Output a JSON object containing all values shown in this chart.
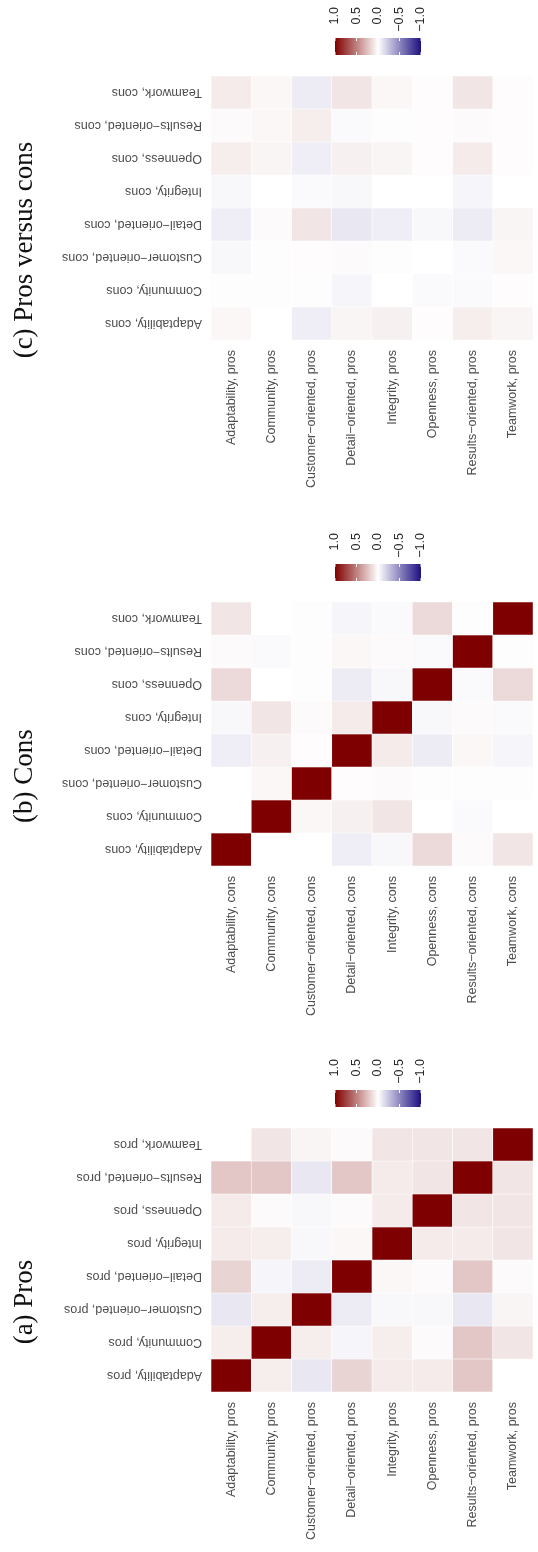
{
  "chart_data": [
    {
      "type": "heatmap",
      "title": "(a) Pros",
      "categories": [
        "Adaptability, pros",
        "Community, pros",
        "Customer−oriented, pros",
        "Detail−oriented, pros",
        "Integrity, pros",
        "Openness, pros",
        "Results−oriented, pros",
        "Teamwork, pros"
      ],
      "y_categories": [
        "Teamwork, pros",
        "Results−oriented, pros",
        "Openness, pros",
        "Integrity, pros",
        "Detail−oriented, pros",
        "Customer−oriented, pros",
        "Community, pros",
        "Adaptability, pros"
      ],
      "cells": [
        [
          0,
          0.1,
          0.04,
          0.02,
          0.1,
          0.1,
          0.1,
          1
        ],
        [
          0.22,
          0.22,
          -0.1,
          0.22,
          0.08,
          0.1,
          1,
          0.1
        ],
        [
          0.08,
          0.02,
          -0.03,
          0.02,
          0.08,
          1,
          0.1,
          0.1
        ],
        [
          0.08,
          0.07,
          -0.03,
          0.03,
          1,
          0.08,
          0.08,
          0.1
        ],
        [
          0.17,
          -0.04,
          -0.08,
          1,
          0.03,
          0.02,
          0.22,
          0.02
        ],
        [
          -0.1,
          0.07,
          1,
          -0.08,
          -0.03,
          -0.03,
          -0.1,
          0.04
        ],
        [
          0.07,
          1,
          0.07,
          -0.04,
          0.07,
          0.02,
          0.22,
          0.1
        ],
        [
          1,
          0.07,
          -0.1,
          0.17,
          0.08,
          0.08,
          0.22,
          0
        ]
      ],
      "clim": [
        1,
        -1
      ],
      "cticks": [
        {
          "value": 1,
          "label": "1.0"
        },
        {
          "value": 0.5,
          "label": "0.5"
        },
        {
          "value": 0,
          "label": "0.0"
        },
        {
          "value": -0.5,
          "label": "−0.5"
        },
        {
          "value": -1,
          "label": "−1.0"
        }
      ]
    },
    {
      "type": "heatmap",
      "title": "(b) Cons",
      "categories": [
        "Adaptability, cons",
        "Community, cons",
        "Customer−oriented, cons",
        "Detail−oriented, cons",
        "Integrity, cons",
        "Openness, cons",
        "Results−oriented, cons",
        "Teamwork, cons"
      ],
      "y_categories": [
        "Teamwork, cons",
        "Results−oriented, cons",
        "Openness, cons",
        "Integrity, cons",
        "Detail−oriented, cons",
        "Customer−oriented, cons",
        "Community, cons",
        "Adaptability, cons"
      ],
      "cells": [
        [
          0.1,
          0,
          -0.01,
          -0.04,
          -0.02,
          0.15,
          -0.01,
          1
        ],
        [
          0.02,
          -0.02,
          -0.01,
          0.03,
          0.02,
          -0.02,
          1,
          -0.01
        ],
        [
          0.15,
          0,
          -0.01,
          -0.08,
          -0.03,
          1,
          -0.02,
          0.15
        ],
        [
          -0.03,
          0.1,
          0.02,
          0.08,
          1,
          -0.03,
          0.02,
          -0.02
        ],
        [
          -0.07,
          0.06,
          0.01,
          1,
          0.08,
          -0.08,
          0.03,
          -0.04
        ],
        [
          0,
          0.03,
          1,
          0.01,
          0.02,
          -0.01,
          -0.01,
          -0.01
        ],
        [
          0,
          1,
          0.03,
          0.06,
          0.1,
          0,
          -0.02,
          0
        ],
        [
          1,
          0,
          0,
          -0.07,
          -0.03,
          0.15,
          0.02,
          0.1
        ]
      ],
      "clim": [
        1,
        -1
      ],
      "cticks": [
        {
          "value": 1,
          "label": "1.0"
        },
        {
          "value": 0.5,
          "label": "0.5"
        },
        {
          "value": 0,
          "label": "0.0"
        },
        {
          "value": -0.5,
          "label": "−0.5"
        },
        {
          "value": -1,
          "label": "−1.0"
        }
      ]
    },
    {
      "type": "heatmap",
      "title": "(c) Pros versus cons",
      "categories": [
        "Adaptability, pros",
        "Community, pros",
        "Customer−oriented, pros",
        "Detail−oriented, pros",
        "Integrity, pros",
        "Openness, pros",
        "Results−oriented, pros",
        "Teamwork, pros"
      ],
      "y_categories": [
        "Teamwork, cons",
        "Results−oriented, cons",
        "Openness, cons",
        "Integrity, cons",
        "Detail−oriented, cons",
        "Customer−oriented, cons",
        "Community, cons",
        "Adaptability, cons"
      ],
      "cells": [
        [
          0.08,
          0.03,
          -0.08,
          0.1,
          0.03,
          0.01,
          0.1,
          0.01
        ],
        [
          0.02,
          0.03,
          0.07,
          -0.02,
          -0.01,
          0.01,
          0.02,
          0.01
        ],
        [
          0.07,
          0.04,
          -0.07,
          0.06,
          0.04,
          0.01,
          0.08,
          0.01
        ],
        [
          -0.03,
          0,
          -0.02,
          -0.03,
          0,
          0,
          -0.04,
          0
        ],
        [
          -0.07,
          0.02,
          0.1,
          -0.1,
          -0.07,
          -0.03,
          -0.08,
          0.04
        ],
        [
          -0.03,
          -0.01,
          0.01,
          0.02,
          -0.01,
          0,
          -0.02,
          0.03
        ],
        [
          -0.01,
          -0.01,
          -0.01,
          -0.04,
          0,
          -0.02,
          -0.02,
          0.01
        ],
        [
          0.03,
          0,
          -0.07,
          0.04,
          0.06,
          0.01,
          0.07,
          0.04
        ]
      ],
      "clim": [
        1,
        -1
      ],
      "cticks": [
        {
          "value": 1,
          "label": "1.0"
        },
        {
          "value": 0.5,
          "label": "0.5"
        },
        {
          "value": 0,
          "label": "0.0"
        },
        {
          "value": -0.5,
          "label": "−0.5"
        },
        {
          "value": -1,
          "label": "−1.0"
        }
      ]
    }
  ]
}
